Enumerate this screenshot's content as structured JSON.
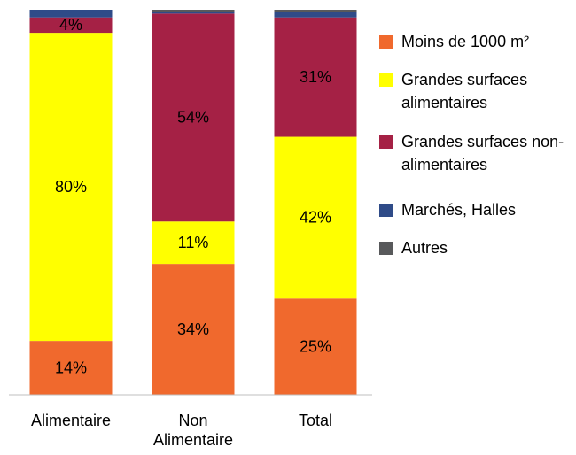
{
  "chart_data": {
    "type": "stacked_bar",
    "categories": [
      "Alimentaire",
      "Non Alimentaire",
      "Total"
    ],
    "series": [
      {
        "name": "Moins de 1000 m²",
        "color": "#f0692d",
        "values": [
          14,
          34,
          25
        ],
        "value_labels": [
          "14%",
          "34%",
          "25%"
        ]
      },
      {
        "name": "Grandes surfaces alimentaires",
        "color": "#ffff00",
        "values": [
          80,
          11,
          42
        ],
        "value_labels": [
          "80%",
          "11%",
          "42%"
        ]
      },
      {
        "name": "Grandes surfaces non-alimentaires",
        "color": "#a52145",
        "values": [
          4,
          54,
          31
        ],
        "value_labels": [
          "4%",
          "54%",
          "31%"
        ]
      },
      {
        "name": "Marchés, Halles",
        "color": "#2f4b88",
        "values": [
          2,
          0.5,
          1.5
        ],
        "value_labels": [
          null,
          null,
          null
        ]
      },
      {
        "name": "Autres",
        "color": "#58595b",
        "values": [
          0,
          0.5,
          0.5
        ],
        "value_labels": [
          null,
          null,
          null
        ]
      }
    ],
    "ylim": [
      0,
      100
    ]
  }
}
